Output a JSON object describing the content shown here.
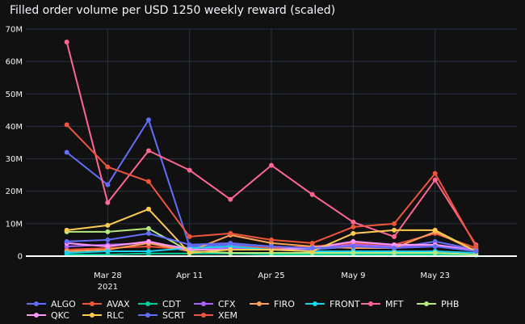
{
  "chart_data": {
    "type": "line",
    "title": "Filled order volume per USD 1250 weekly reward (scaled)",
    "xlabel": "",
    "ylabel": "",
    "x": [
      "2021-03-21",
      "2021-03-28",
      "2021-04-04",
      "2021-04-11",
      "2021-04-18",
      "2021-04-25",
      "2021-05-02",
      "2021-05-09",
      "2021-05-16",
      "2021-05-23",
      "2021-05-30"
    ],
    "x_ticks": [
      {
        "date": "2021-03-28",
        "label": "Mar 28",
        "sublabel": "2021"
      },
      {
        "date": "2021-04-11",
        "label": "Apr 11"
      },
      {
        "date": "2021-04-25",
        "label": "Apr 25"
      },
      {
        "date": "2021-05-09",
        "label": "May 9"
      },
      {
        "date": "2021-05-23",
        "label": "May 23"
      }
    ],
    "ylim": [
      0,
      70000000
    ],
    "y_ticks": [
      0,
      10000000,
      20000000,
      30000000,
      40000000,
      50000000,
      60000000,
      70000000
    ],
    "y_tick_labels": [
      "0",
      "10M",
      "20M",
      "30M",
      "40M",
      "50M",
      "60M",
      "70M"
    ],
    "grid": true,
    "legend_position": "bottom",
    "series": [
      {
        "name": "ALGO",
        "color": "#636efa",
        "values": [
          32000000,
          22000000,
          42000000,
          3000000,
          3500000,
          2500000,
          2000000,
          3000000,
          2500000,
          4500000,
          2000000
        ]
      },
      {
        "name": "AVAX",
        "color": "#ef553b",
        "values": [
          2000000,
          2500000,
          3000000,
          2000000,
          3000000,
          2500000,
          3000000,
          4000000,
          3500000,
          7000000,
          2500000
        ]
      },
      {
        "name": "CDT",
        "color": "#00cc96",
        "values": [
          500000,
          500000,
          800000,
          800000,
          800000,
          500000,
          500000,
          500000,
          500000,
          500000,
          300000
        ]
      },
      {
        "name": "CFX",
        "color": "#ab63fa",
        "values": [
          3000000,
          3500000,
          4000000,
          2500000,
          2500000,
          2000000,
          2500000,
          3500000,
          3000000,
          3500000,
          2000000
        ]
      },
      {
        "name": "FIRO",
        "color": "#ffa15a",
        "values": [
          1500000,
          2000000,
          4000000,
          1500000,
          6500000,
          4000000,
          3000000,
          2500000,
          2500000,
          7500000,
          1500000
        ]
      },
      {
        "name": "FRONT",
        "color": "#19d3f3",
        "values": [
          1000000,
          1500000,
          1500000,
          2500000,
          3000000,
          2000000,
          1500000,
          1500000,
          1500000,
          1500000,
          1000000
        ]
      },
      {
        "name": "MFT",
        "color": "#ff6692",
        "values": [
          66000000,
          16500000,
          32500000,
          26500000,
          17500000,
          28000000,
          19000000,
          10500000,
          6000000,
          23500000,
          3500000
        ]
      },
      {
        "name": "PHB",
        "color": "#b6e880",
        "values": [
          7500000,
          7500000,
          8500000,
          1500000,
          1000000,
          1000000,
          1000000,
          1000000,
          1000000,
          1000000,
          500000
        ]
      },
      {
        "name": "QKC",
        "color": "#ff97ff",
        "values": [
          4000000,
          3000000,
          4500000,
          2000000,
          2000000,
          2000000,
          2500000,
          4500000,
          3500000,
          3500000,
          1500000
        ]
      },
      {
        "name": "RLC",
        "color": "#fecb52",
        "values": [
          8000000,
          9500000,
          14500000,
          1000000,
          2000000,
          2000000,
          1500000,
          7000000,
          8000000,
          8000000,
          1500000
        ]
      },
      {
        "name": "SCRT",
        "color": "#636efa",
        "values": [
          4500000,
          5000000,
          7000000,
          3500000,
          4000000,
          3000000,
          2500000,
          3000000,
          2500000,
          3000000,
          1500000
        ]
      },
      {
        "name": "XEM",
        "color": "#ef553b",
        "values": [
          40500000,
          27500000,
          23000000,
          6000000,
          7000000,
          5000000,
          4000000,
          9000000,
          10000000,
          25500000,
          3000000
        ]
      }
    ]
  }
}
